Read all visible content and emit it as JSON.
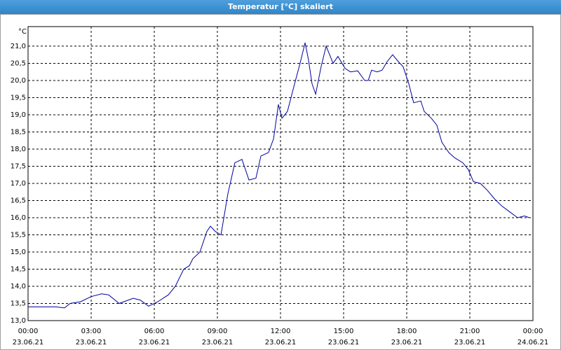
{
  "window": {
    "title": "Temperatur [°C] skaliert"
  },
  "chart_data": {
    "type": "line",
    "y_unit": "°C",
    "grid": true,
    "color": "#0000a0",
    "xlim": [
      0,
      24
    ],
    "ylim": [
      13,
      21.57
    ],
    "xticks": [
      {
        "value": 0,
        "label": "00:00",
        "date": "23.06.21"
      },
      {
        "value": 3,
        "label": "03:00",
        "date": "23.06.21"
      },
      {
        "value": 6,
        "label": "06:00",
        "date": "23.06.21"
      },
      {
        "value": 9,
        "label": "09:00",
        "date": "23.06.21"
      },
      {
        "value": 12,
        "label": "12:00",
        "date": "23.06.21"
      },
      {
        "value": 15,
        "label": "15:00",
        "date": "23.06.21"
      },
      {
        "value": 18,
        "label": "18:00",
        "date": "23.06.21"
      },
      {
        "value": 21,
        "label": "21:00",
        "date": "23.06.21"
      },
      {
        "value": 24,
        "label": "00:00",
        "date": "24.06.21"
      }
    ],
    "yticks": [
      {
        "value": 13,
        "label": "13,0"
      },
      {
        "value": 13.5,
        "label": "13,5"
      },
      {
        "value": 14,
        "label": "14,0"
      },
      {
        "value": 14.5,
        "label": "14,5"
      },
      {
        "value": 15,
        "label": "15,0"
      },
      {
        "value": 15.5,
        "label": "15,5"
      },
      {
        "value": 16,
        "label": "16,0"
      },
      {
        "value": 16.5,
        "label": "16,5"
      },
      {
        "value": 17,
        "label": "17,0"
      },
      {
        "value": 17.5,
        "label": "17,5"
      },
      {
        "value": 18,
        "label": "18,0"
      },
      {
        "value": 18.5,
        "label": "18,5"
      },
      {
        "value": 19,
        "label": "19,0"
      },
      {
        "value": 19.5,
        "label": "19,5"
      },
      {
        "value": 20,
        "label": "20,0"
      },
      {
        "value": 20.5,
        "label": "20,5"
      },
      {
        "value": 21,
        "label": "21,0"
      }
    ],
    "x": [
      0,
      0.67,
      1.33,
      1.73,
      2,
      2.5,
      3,
      3.5,
      3.83,
      4.33,
      5,
      5.33,
      5.73,
      6.17,
      6.67,
      7,
      7.4,
      7.67,
      7.83,
      8.17,
      8.5,
      8.67,
      8.9,
      9.17,
      9.5,
      9.83,
      10.17,
      10.5,
      10.83,
      11.07,
      11.43,
      11.67,
      11.9,
      12.07,
      12.33,
      12.67,
      12.93,
      13.17,
      13.33,
      13.5,
      13.67,
      13.93,
      14.17,
      14.5,
      14.73,
      15.07,
      15.33,
      15.67,
      16,
      16.17,
      16.33,
      16.6,
      16.83,
      17.07,
      17.33,
      17.6,
      17.83,
      18.1,
      18.33,
      18.67,
      18.83,
      19.17,
      19.43,
      19.67,
      20,
      20.27,
      20.67,
      20.93,
      21.17,
      21.5,
      21.83,
      22.17,
      22.5,
      22.83,
      23.27,
      23.6,
      23.83
    ],
    "values": [
      13.4,
      13.4,
      13.4,
      13.37,
      13.5,
      13.55,
      13.7,
      13.78,
      13.75,
      13.5,
      13.65,
      13.6,
      13.42,
      13.55,
      13.75,
      14.0,
      14.5,
      14.6,
      14.8,
      15.0,
      15.6,
      15.75,
      15.6,
      15.5,
      16.7,
      17.6,
      17.7,
      17.1,
      17.15,
      17.8,
      17.9,
      18.3,
      19.3,
      18.9,
      19.1,
      19.9,
      20.5,
      21.1,
      20.6,
      19.9,
      19.6,
      20.4,
      21.0,
      20.5,
      20.7,
      20.35,
      20.25,
      20.28,
      20.0,
      20.0,
      20.3,
      20.25,
      20.3,
      20.55,
      20.75,
      20.55,
      20.4,
      19.9,
      19.35,
      19.4,
      19.1,
      18.9,
      18.7,
      18.2,
      17.9,
      17.75,
      17.6,
      17.4,
      17.05,
      17.0,
      16.8,
      16.55,
      16.35,
      16.2,
      16.0,
      16.05,
      16.0
    ]
  }
}
